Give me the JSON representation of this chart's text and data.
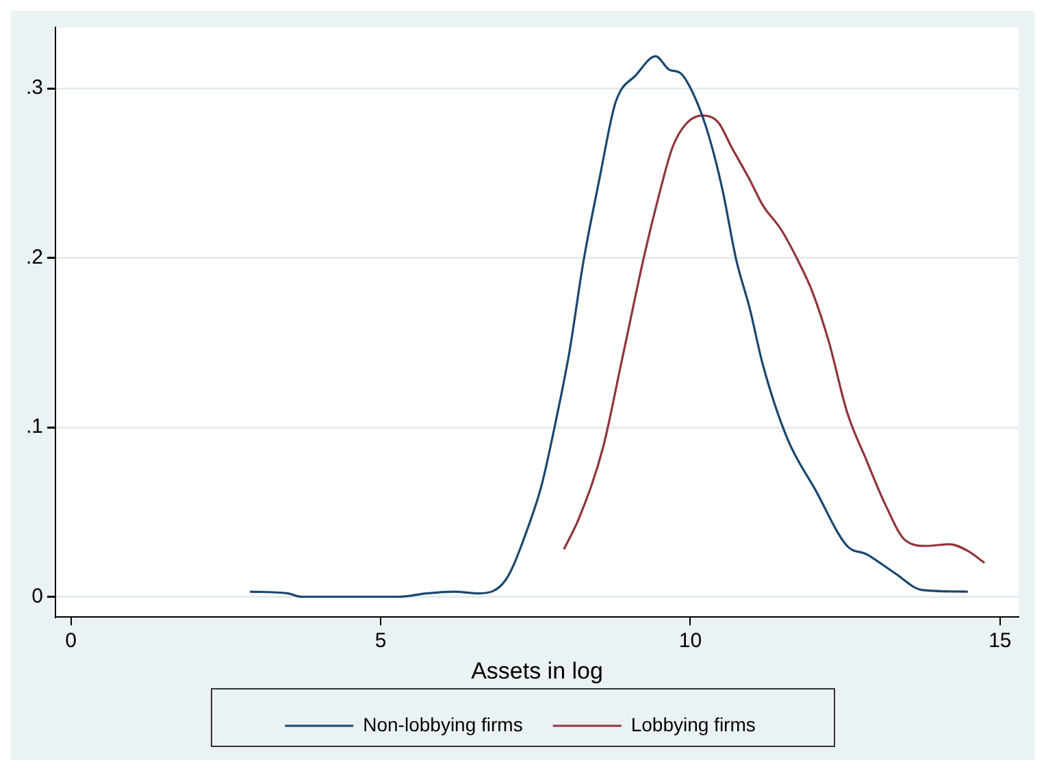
{
  "chart_data": {
    "type": "line",
    "xlabel": "Assets in log",
    "xlim": [
      -0.25,
      15.3
    ],
    "xticks": [
      0,
      5,
      10,
      15
    ],
    "ylim": [
      -0.012,
      0.336
    ],
    "yticks": [
      0,
      {
        "value": 0.1,
        "label": ".1"
      },
      {
        "value": 0.2,
        "label": ".2"
      },
      {
        "value": 0.3,
        "label": ".3"
      }
    ],
    "grid": "y",
    "legend": "bottom",
    "marker": "none",
    "line_style": "solid",
    "series": [
      {
        "name": "Non-lobbying firms",
        "color": "#1a476f",
        "x": [
          2.89,
          3.5,
          3.72,
          5.29,
          5.74,
          6.19,
          6.59,
          7.02,
          7.38,
          7.6,
          7.83,
          8.05,
          8.27,
          8.54,
          8.77,
          8.88,
          9.1,
          9.44,
          9.66,
          9.84,
          10.07,
          10.29,
          10.52,
          10.74,
          10.96,
          11.17,
          11.57,
          12.02,
          12.53,
          12.85,
          13.3,
          13.74,
          14.48
        ],
        "values": [
          0.003,
          0.002,
          0,
          0,
          0.002,
          0.003,
          0.002,
          0.01,
          0.041,
          0.066,
          0.104,
          0.145,
          0.197,
          0.248,
          0.289,
          0.299,
          0.307,
          0.319,
          0.311,
          0.309,
          0.295,
          0.273,
          0.24,
          0.199,
          0.17,
          0.137,
          0.093,
          0.063,
          0.03,
          0.025,
          0.014,
          0.004,
          0.003
        ]
      },
      {
        "name": "Lobbying firms",
        "color": "#90353b",
        "x": [
          7.96,
          8.21,
          8.59,
          8.88,
          9.26,
          9.48,
          9.71,
          9.93,
          10.2,
          10.45,
          10.67,
          10.96,
          11.17,
          11.46,
          11.73,
          11.97,
          12.24,
          12.53,
          12.85,
          13.14,
          13.48,
          13.81,
          14.19,
          14.48,
          14.75
        ],
        "values": [
          0.028,
          0.047,
          0.088,
          0.137,
          0.202,
          0.235,
          0.265,
          0.279,
          0.284,
          0.28,
          0.265,
          0.246,
          0.231,
          0.217,
          0.199,
          0.18,
          0.15,
          0.109,
          0.08,
          0.055,
          0.033,
          0.03,
          0.031,
          0.027,
          0.02
        ]
      }
    ]
  }
}
